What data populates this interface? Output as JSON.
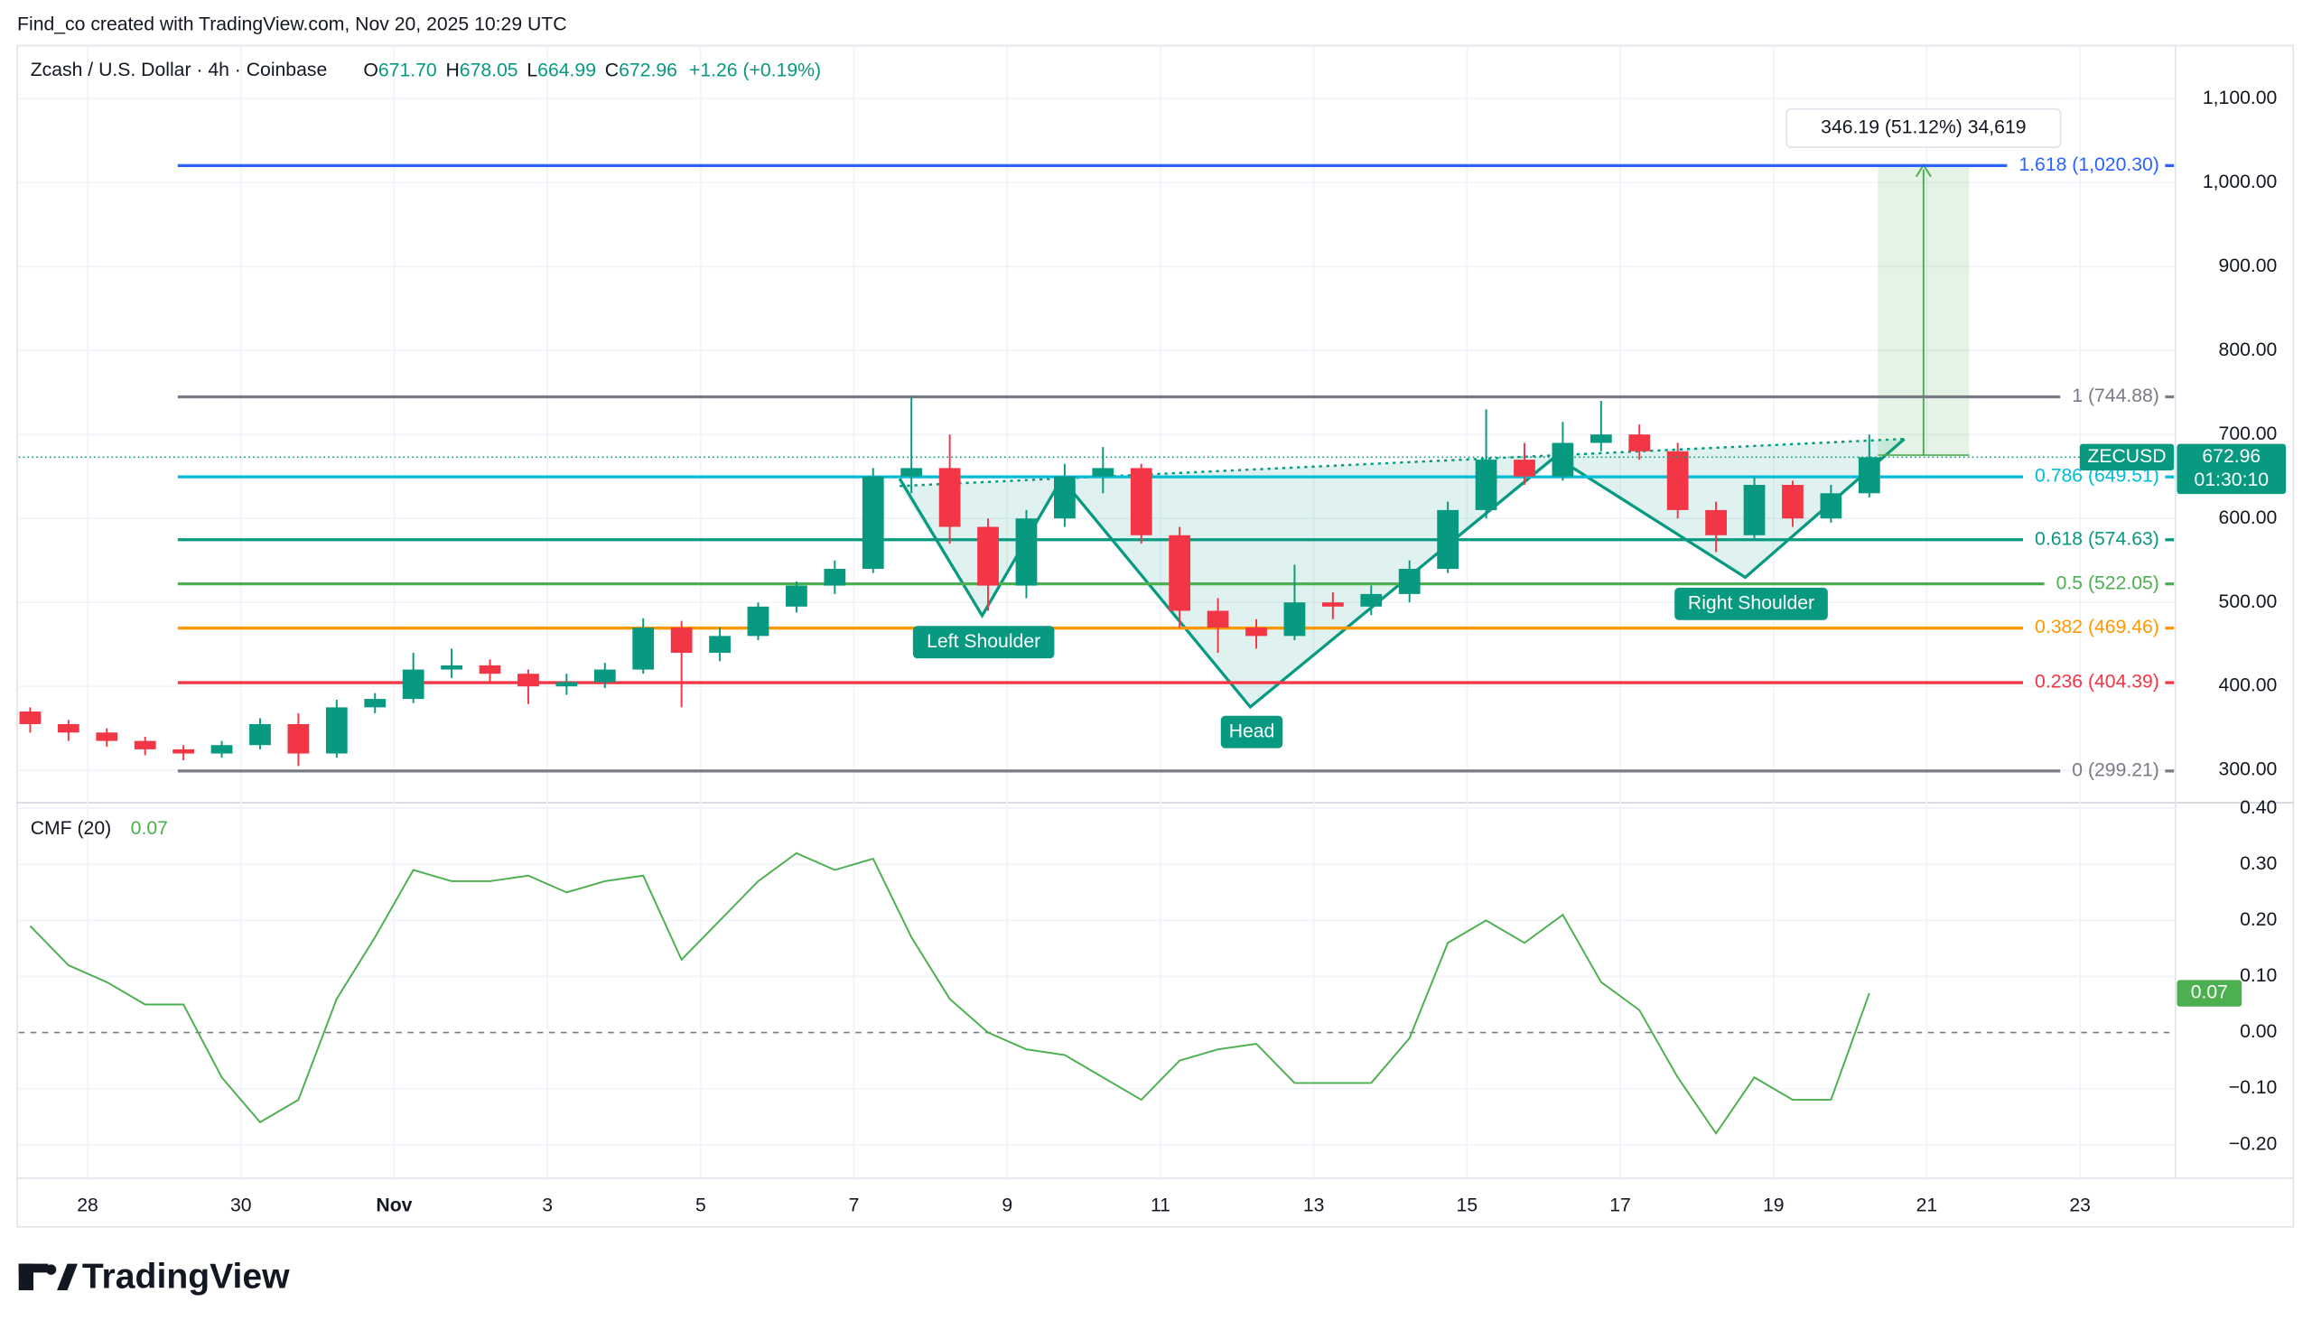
{
  "header": {
    "credit": "Find_co created with TradingView.com, Nov 20, 2025 10:29 UTC",
    "symbol": "Zcash / U.S. Dollar · 4h · Coinbase",
    "ohlc": [
      {
        "label": "O",
        "value": "671.70"
      },
      {
        "label": "H",
        "value": "678.05"
      },
      {
        "label": "L",
        "value": "664.99"
      },
      {
        "label": "C",
        "value": "672.96"
      }
    ],
    "change": "+1.26 (+0.19%)"
  },
  "footer": {
    "logo": "TradingView"
  },
  "chart_data": [
    {
      "type": "candlestick",
      "symbol": "ZECUSD",
      "countdown": "01:30:10",
      "up_color": "#089981",
      "down_color": "#f23645",
      "x": [
        -0.75,
        -0.25,
        0.25,
        0.75,
        1.25,
        1.75,
        2.25,
        2.75,
        3.25,
        3.75,
        4.25,
        4.75,
        5.25,
        5.75,
        6.25,
        6.75,
        7.25,
        7.75,
        8.25,
        8.75,
        9.25,
        9.75,
        10.25,
        10.75,
        11.25,
        11.75,
        12.25,
        12.75,
        13.25,
        13.75,
        14.25,
        14.75,
        15.25,
        15.75,
        16.25,
        16.75,
        17.25,
        17.75,
        18.25,
        18.75,
        19.25,
        19.75,
        20.25,
        20.75,
        21.25,
        21.75,
        22.25,
        22.75,
        23.25
      ],
      "open": [
        370,
        355,
        345,
        335,
        325,
        320,
        330,
        355,
        320,
        375,
        385,
        420,
        425,
        415,
        400,
        405,
        420,
        470,
        440,
        460,
        495,
        520,
        540,
        650,
        660,
        590,
        520,
        600,
        650,
        660,
        580,
        490,
        470,
        460,
        500,
        495,
        510,
        540,
        610,
        670,
        650,
        690,
        700,
        680,
        610,
        580,
        640,
        600,
        630
      ],
      "high": [
        375,
        360,
        350,
        340,
        330,
        335,
        362,
        368,
        384,
        392,
        440,
        445,
        432,
        420,
        415,
        428,
        481,
        478,
        470,
        500,
        525,
        550,
        660,
        745,
        700,
        600,
        610,
        665,
        685,
        665,
        590,
        505,
        480,
        545,
        512,
        520,
        550,
        620,
        730,
        690,
        715,
        740,
        712,
        690,
        620,
        650,
        645,
        640,
        700
      ],
      "low": [
        345,
        335,
        328,
        318,
        312,
        315,
        325,
        305,
        315,
        368,
        380,
        410,
        405,
        379,
        390,
        398,
        415,
        375,
        430,
        455,
        488,
        510,
        535,
        630,
        570,
        490,
        505,
        590,
        630,
        570,
        470,
        440,
        445,
        455,
        480,
        485,
        500,
        535,
        600,
        640,
        645,
        680,
        670,
        600,
        560,
        575,
        590,
        595,
        625
      ],
      "close": [
        355,
        345,
        335,
        325,
        320,
        330,
        355,
        320,
        375,
        385,
        420,
        425,
        415,
        400,
        405,
        420,
        470,
        440,
        460,
        495,
        520,
        540,
        650,
        660,
        590,
        520,
        600,
        650,
        660,
        580,
        490,
        470,
        460,
        500,
        495,
        510,
        540,
        610,
        670,
        650,
        690,
        700,
        680,
        610,
        580,
        640,
        600,
        630,
        672.96
      ],
      "xlim": [
        -0.9,
        27.13
      ],
      "xticks": [
        {
          "value": 0,
          "label": "28"
        },
        {
          "value": 2,
          "label": "30"
        },
        {
          "value": 4,
          "label": "Nov"
        },
        {
          "value": 6,
          "label": "3"
        },
        {
          "value": 8,
          "label": "5"
        },
        {
          "value": 10,
          "label": "7"
        },
        {
          "value": 12,
          "label": "9"
        },
        {
          "value": 14,
          "label": "11"
        },
        {
          "value": 16,
          "label": "13"
        },
        {
          "value": 18,
          "label": "15"
        },
        {
          "value": 20,
          "label": "17"
        },
        {
          "value": 22,
          "label": "19"
        },
        {
          "value": 24,
          "label": "21"
        },
        {
          "value": 26,
          "label": "23"
        }
      ],
      "ylim": [
        261.4,
        1161.4
      ],
      "yticks": [
        {
          "value": 300,
          "label": "300.00"
        },
        {
          "value": 400,
          "label": "400.00"
        },
        {
          "value": 500,
          "label": "500.00"
        },
        {
          "value": 600,
          "label": "600.00"
        },
        {
          "value": 700,
          "label": "700.00"
        },
        {
          "value": 800,
          "label": "800.00"
        },
        {
          "value": 900,
          "label": "900.00"
        },
        {
          "value": 1000,
          "label": "1,000.00"
        },
        {
          "value": 1100,
          "label": "1,100.00"
        }
      ],
      "grid": true,
      "fib_levels": [
        {
          "name": "1.618 (1,020.30)",
          "value": 1020.3,
          "color": "#2962ff"
        },
        {
          "name": "1 (744.88)",
          "value": 744.88,
          "color": "#787b86"
        },
        {
          "name": "0.786 (649.51)",
          "value": 649.51,
          "color": "#00bcd4"
        },
        {
          "name": "0.618 (574.63)",
          "value": 574.63,
          "color": "#089981"
        },
        {
          "name": "0.5 (522.05)",
          "value": 522.05,
          "color": "#4caf50"
        },
        {
          "name": "0.382 (469.46)",
          "value": 469.46,
          "color": "#ff9800"
        },
        {
          "name": "0.236 (404.39)",
          "value": 404.39,
          "color": "#f23645"
        },
        {
          "name": "0 (299.21)",
          "value": 299.21,
          "color": "#787b86"
        }
      ],
      "annotations": [
        "Left Shoulder",
        "Head",
        "Right Shoulder",
        "346.19 (51.12%) 34,619"
      ]
    },
    {
      "type": "line",
      "title": "CMF (20)",
      "color": "#4caf50",
      "x": [
        -0.75,
        -0.25,
        0.25,
        0.75,
        1.25,
        1.75,
        2.25,
        2.75,
        3.25,
        3.75,
        4.25,
        4.75,
        5.25,
        5.75,
        6.25,
        6.75,
        7.25,
        7.75,
        8.25,
        8.75,
        9.25,
        9.75,
        10.25,
        10.75,
        11.25,
        11.75,
        12.25,
        12.75,
        13.25,
        13.75,
        14.25,
        14.75,
        15.25,
        15.75,
        16.25,
        16.75,
        17.25,
        17.75,
        18.25,
        18.75,
        19.25,
        19.75,
        20.25,
        20.75,
        21.25,
        21.75,
        22.25,
        22.75,
        23.25
      ],
      "values": [
        0.19,
        0.12,
        0.09,
        0.05,
        0.05,
        -0.08,
        -0.16,
        -0.12,
        0.06,
        0.17,
        0.29,
        0.27,
        0.27,
        0.28,
        0.25,
        0.27,
        0.28,
        0.13,
        0.2,
        0.27,
        0.32,
        0.29,
        0.31,
        0.17,
        0.06,
        0.0,
        -0.03,
        -0.04,
        -0.08,
        -0.12,
        -0.05,
        -0.03,
        -0.02,
        -0.09,
        -0.09,
        -0.09,
        -0.01,
        0.16,
        0.2,
        0.16,
        0.21,
        0.09,
        0.04,
        -0.08,
        -0.18,
        -0.08,
        -0.12,
        -0.12,
        0.07
      ],
      "xlim": [
        -0.9,
        27.13
      ],
      "ylim": [
        -0.26,
        0.41
      ],
      "yticks": [
        {
          "value": 0.4,
          "label": "0.40"
        },
        {
          "value": 0.3,
          "label": "0.30"
        },
        {
          "value": 0.2,
          "label": "0.20"
        },
        {
          "value": 0.1,
          "label": "0.10"
        },
        {
          "value": 0,
          "label": "0.00"
        },
        {
          "value": -0.1,
          "label": "−0.10"
        },
        {
          "value": -0.2,
          "label": "−0.20"
        }
      ],
      "grid": true
    }
  ]
}
